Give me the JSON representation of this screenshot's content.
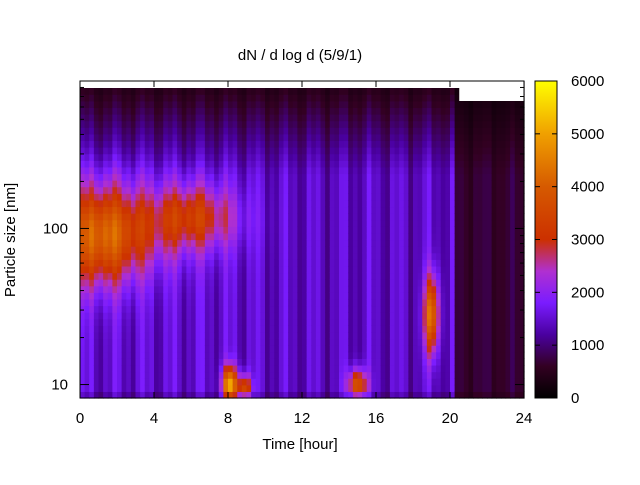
{
  "chart_data": {
    "type": "heatmap",
    "title": "dN / d log d (5/9/1)",
    "xlabel": "Time [hour]",
    "ylabel": "Particle size [nm]",
    "x_ticks": [
      0,
      4,
      8,
      12,
      16,
      20,
      24
    ],
    "x_range": [
      0,
      24
    ],
    "y_scale": "log",
    "y_range": [
      8.2,
      880
    ],
    "y_tick_labels": [
      {
        "value": 10,
        "label": "10"
      },
      {
        "value": 100,
        "label": "100"
      }
    ],
    "y_minor_ticks": [
      20,
      30,
      40,
      50,
      60,
      70,
      80,
      90,
      200,
      300,
      400,
      500,
      600,
      700,
      800
    ],
    "colorbar": {
      "range": [
        0,
        6000
      ],
      "ticks": [
        0,
        1000,
        2000,
        3000,
        4000,
        5000,
        6000
      ],
      "palette": [
        {
          "value": 0,
          "color": "#000000"
        },
        {
          "value": 600,
          "color": "#330022"
        },
        {
          "value": 1200,
          "color": "#4a00a0"
        },
        {
          "value": 1800,
          "color": "#7a1cff"
        },
        {
          "value": 2400,
          "color": "#b030d0"
        },
        {
          "value": 3000,
          "color": "#cc3000"
        },
        {
          "value": 4000,
          "color": "#d65a00"
        },
        {
          "value": 5000,
          "color": "#f0a000"
        },
        {
          "value": 6000,
          "color": "#ffff00"
        }
      ]
    },
    "features": [
      {
        "label": "morning mode",
        "t": 1.0,
        "d": 90,
        "peak": 3700
      },
      {
        "label": "midday mode",
        "t": 6.5,
        "d": 120,
        "peak": 3200
      },
      {
        "label": "nucleation burst 1",
        "t": 8.1,
        "d": 10,
        "peak": 5000
      },
      {
        "label": "nucleation burst 2",
        "t": 15.0,
        "d": 10,
        "peak": 4200
      },
      {
        "label": "evening plume",
        "t": 19.0,
        "d": 30,
        "peak": 4400
      }
    ],
    "missing_data_note": "top-right region after hour 20 has no data (white)",
    "grid": false
  }
}
